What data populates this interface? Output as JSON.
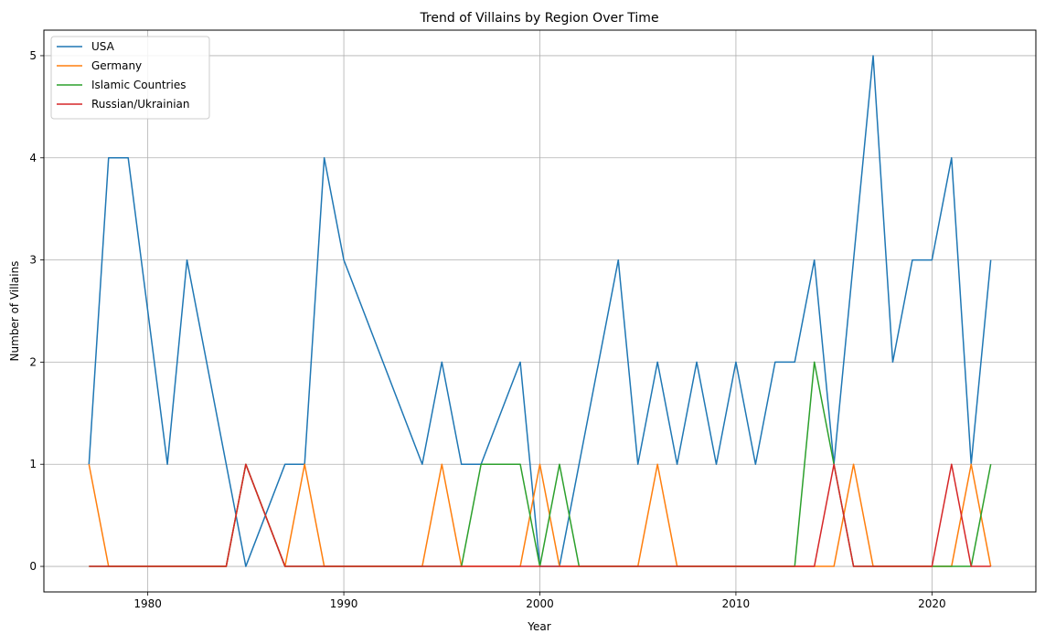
{
  "chart_data": {
    "type": "line",
    "title": "Trend of Villains by Region Over Time",
    "xlabel": "Year",
    "ylabel": "Number of Villains",
    "xlim": [
      1974.7,
      2025.3
    ],
    "ylim": [
      -0.25,
      5.25
    ],
    "xticks": [
      1980,
      1990,
      2000,
      2010,
      2020
    ],
    "yticks": [
      0,
      1,
      2,
      3,
      4,
      5
    ],
    "grid": true,
    "legend_position": "upper-left",
    "x": [
      1977,
      1978,
      1979,
      1980,
      1981,
      1982,
      1983,
      1984,
      1985,
      1986,
      1987,
      1988,
      1989,
      1990,
      1991,
      1992,
      1993,
      1994,
      1995,
      1996,
      1997,
      1998,
      1999,
      2000,
      2001,
      2002,
      2003,
      2004,
      2005,
      2006,
      2007,
      2008,
      2009,
      2010,
      2011,
      2012,
      2013,
      2014,
      2015,
      2016,
      2017,
      2018,
      2019,
      2020,
      2021,
      2022,
      2023
    ],
    "series": [
      {
        "name": "USA",
        "color": "#1f77b4",
        "values": [
          1,
          4,
          4,
          null,
          1,
          3,
          null,
          null,
          0,
          null,
          1,
          1,
          4,
          3,
          null,
          null,
          null,
          1,
          2,
          1,
          1,
          null,
          2,
          0,
          0,
          null,
          null,
          3,
          1,
          2,
          1,
          2,
          1,
          2,
          1,
          2,
          2,
          3,
          1,
          null,
          5,
          2,
          3,
          3,
          4,
          1,
          3
        ]
      },
      {
        "name": "Germany",
        "color": "#ff7f0e",
        "values": [
          1,
          0,
          0,
          0,
          0,
          0,
          0,
          0,
          1,
          null,
          0,
          1,
          0,
          0,
          0,
          0,
          0,
          0,
          1,
          0,
          0,
          0,
          0,
          1,
          0,
          0,
          0,
          0,
          0,
          1,
          0,
          0,
          0,
          0,
          0,
          0,
          0,
          0,
          0,
          1,
          0,
          0,
          0,
          0,
          0,
          1,
          0
        ]
      },
      {
        "name": "Islamic Countries",
        "color": "#2ca02c",
        "values": [
          0,
          0,
          0,
          0,
          0,
          0,
          0,
          0,
          1,
          null,
          0,
          0,
          0,
          0,
          0,
          0,
          0,
          0,
          0,
          0,
          1,
          1,
          1,
          0,
          1,
          0,
          0,
          0,
          0,
          0,
          0,
          0,
          0,
          0,
          0,
          0,
          0,
          2,
          1,
          0,
          0,
          0,
          0,
          0,
          0,
          0,
          1
        ]
      },
      {
        "name": "Russian/Ukrainian",
        "color": "#d62728",
        "values": [
          0,
          0,
          0,
          0,
          0,
          0,
          0,
          0,
          1,
          null,
          0,
          0,
          0,
          0,
          0,
          0,
          0,
          0,
          0,
          0,
          0,
          0,
          0,
          0,
          0,
          0,
          0,
          0,
          0,
          0,
          0,
          0,
          0,
          0,
          0,
          0,
          0,
          0,
          1,
          0,
          0,
          0,
          0,
          0,
          1,
          0,
          0
        ]
      }
    ]
  }
}
